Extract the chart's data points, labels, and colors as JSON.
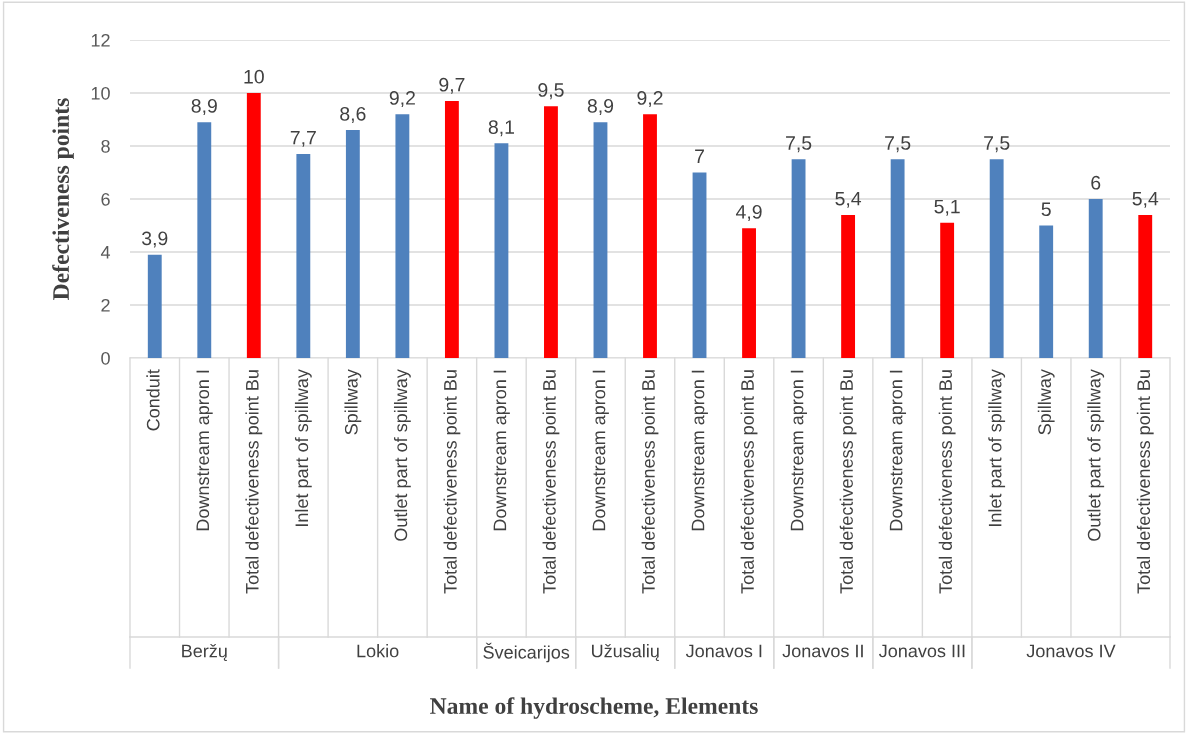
{
  "chart_data": {
    "type": "bar",
    "ylabel": "Defectiveness points",
    "xlabel": "Name of hydroscheme, Elements",
    "categories": [
      "Conduit",
      "Downstream apron I",
      "Total defectiveness point Bu",
      "Inlet part of spillway",
      "Spillway",
      "Outlet part of spillway",
      "Total defectiveness point Bu",
      "Downstream apron I",
      "Total defectiveness point Bu",
      "Downstream apron I",
      "Total defectiveness point Bu",
      "Downstream apron I",
      "Total defectiveness point Bu",
      "Downstream apron I",
      "Total defectiveness point Bu",
      "Downstream apron I",
      "Total defectiveness point Bu",
      "Inlet part of spillway",
      "Spillway",
      "Outlet part of spillway",
      "Total defectiveness point Bu"
    ],
    "values": [
      3.9,
      8.9,
      10,
      7.7,
      8.6,
      9.2,
      9.7,
      8.1,
      9.5,
      8.9,
      9.2,
      7,
      4.9,
      7.5,
      5.4,
      7.5,
      5.1,
      7.5,
      5,
      6,
      5.4
    ],
    "value_labels": [
      "3,9",
      "8,9",
      "10",
      "7,7",
      "8,6",
      "9,2",
      "9,7",
      "8,1",
      "9,5",
      "8,9",
      "9,2",
      "7",
      "4,9",
      "7,5",
      "5,4",
      "7,5",
      "5,1",
      "7,5",
      "5",
      "6",
      "5,4"
    ],
    "colors": [
      "#4f81bd",
      "#4f81bd",
      "#ff0000",
      "#4f81bd",
      "#4f81bd",
      "#4f81bd",
      "#ff0000",
      "#4f81bd",
      "#ff0000",
      "#4f81bd",
      "#ff0000",
      "#4f81bd",
      "#ff0000",
      "#4f81bd",
      "#ff0000",
      "#4f81bd",
      "#ff0000",
      "#4f81bd",
      "#4f81bd",
      "#4f81bd",
      "#ff0000"
    ],
    "annotations": [
      "Beržų",
      "Lokio",
      "Šveicarijos",
      "Užusalių",
      "Jonavos I",
      "Jonavos II",
      "Jonavos III",
      "Jonavos IV"
    ],
    "ylim": [
      0,
      12
    ],
    "yticks": [
      0,
      2,
      4,
      6,
      8,
      10,
      12
    ],
    "grid": "y",
    "legend": false
  }
}
